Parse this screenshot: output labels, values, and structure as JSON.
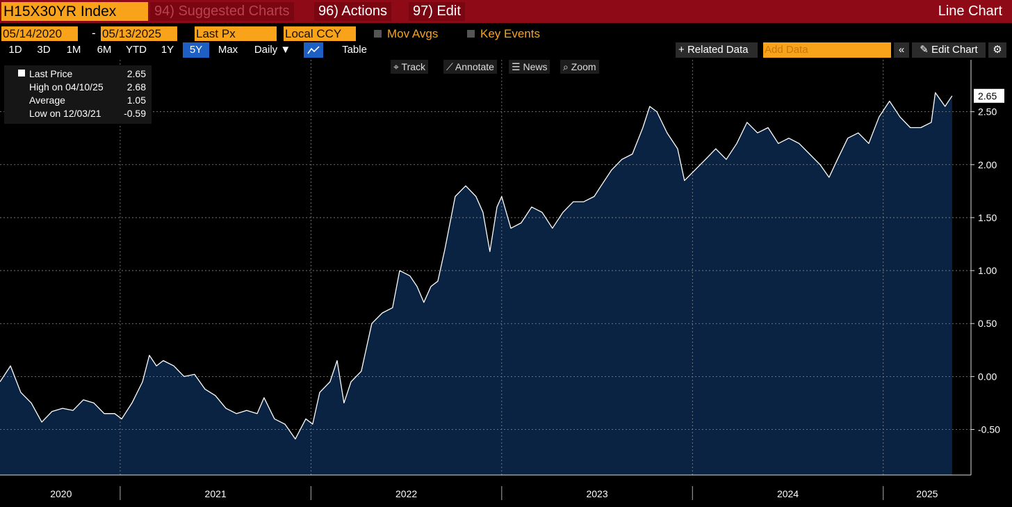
{
  "toolbar": {
    "ticker": "H15X30YR Index",
    "menu": [
      "94) Suggested Charts",
      "96) Actions",
      "97) Edit"
    ],
    "view": "Line Chart"
  },
  "settings": {
    "start": "05/14/2020",
    "end": "05/13/2025",
    "field": "Last Px",
    "currency": "Local CCY",
    "options": [
      "Mov Avgs",
      "Key Events"
    ]
  },
  "ranges": {
    "buttons": [
      "1D",
      "3D",
      "1M",
      "6M",
      "YTD",
      "1Y",
      "5Y",
      "Max"
    ],
    "frequency": "Daily",
    "table": "Table",
    "related": "Related Data",
    "add": "Add Data",
    "edit": "Edit Chart"
  },
  "tools": [
    "Track",
    "Annotate",
    "News",
    "Zoom"
  ],
  "chart_data": {
    "type": "area",
    "series": [
      {
        "name": "Last Price",
        "color": "#ffffff",
        "fill": "#0b2342",
        "x": [
          2020.37,
          2020.425,
          2020.479,
          2020.534,
          2020.589,
          2020.643,
          2020.698,
          2020.753,
          2020.807,
          2020.862,
          2020.916,
          2020.971,
          2021.008,
          2021.062,
          2021.117,
          2021.153,
          2021.19,
          2021.226,
          2021.281,
          2021.335,
          2021.39,
          2021.445,
          2021.499,
          2021.554,
          2021.609,
          2021.663,
          2021.718,
          2021.754,
          2021.809,
          2021.864,
          2021.918,
          2021.973,
          2022.009,
          2022.046,
          2022.1,
          2022.137,
          2022.173,
          2022.21,
          2022.264,
          2022.319,
          2022.374,
          2022.428,
          2022.465,
          2022.519,
          2022.556,
          2022.592,
          2022.629,
          2022.665,
          2022.702,
          2022.756,
          2022.811,
          2022.865,
          2022.902,
          2022.938,
          2022.975,
          2023.0,
          2023.048,
          2023.102,
          2023.157,
          2023.212,
          2023.266,
          2023.321,
          2023.375,
          2023.43,
          2023.485,
          2023.521,
          2023.576,
          2023.63,
          2023.685,
          2023.74,
          2023.776,
          2023.813,
          2023.867,
          2023.922,
          2023.958,
          2024.013,
          2024.068,
          2024.122,
          2024.177,
          2024.232,
          2024.286,
          2024.341,
          2024.396,
          2024.45,
          2024.505,
          2024.559,
          2024.614,
          2024.669,
          2024.716,
          2024.76,
          2024.814,
          2024.869,
          2024.924,
          2024.978,
          2025.033,
          2025.088,
          2025.142,
          2025.197,
          2025.252,
          2025.273,
          2025.324,
          2025.361
        ],
        "values": [
          -0.05,
          0.1,
          -0.15,
          -0.25,
          -0.43,
          -0.33,
          -0.3,
          -0.32,
          -0.22,
          -0.25,
          -0.35,
          -0.35,
          -0.4,
          -0.25,
          -0.05,
          0.2,
          0.1,
          0.15,
          0.1,
          0.0,
          0.02,
          -0.12,
          -0.18,
          -0.3,
          -0.35,
          -0.32,
          -0.35,
          -0.2,
          -0.4,
          -0.45,
          -0.59,
          -0.4,
          -0.45,
          -0.15,
          -0.05,
          0.15,
          -0.25,
          -0.05,
          0.05,
          0.5,
          0.6,
          0.65,
          1.0,
          0.95,
          0.85,
          0.7,
          0.85,
          0.9,
          1.2,
          1.7,
          1.8,
          1.7,
          1.55,
          1.18,
          1.6,
          1.7,
          1.4,
          1.45,
          1.6,
          1.55,
          1.4,
          1.55,
          1.65,
          1.65,
          1.7,
          1.8,
          1.95,
          2.05,
          2.1,
          2.35,
          2.55,
          2.5,
          2.3,
          2.15,
          1.85,
          1.95,
          2.05,
          2.15,
          2.05,
          2.2,
          2.4,
          2.3,
          2.35,
          2.2,
          2.25,
          2.2,
          2.1,
          2.0,
          1.88,
          2.05,
          2.25,
          2.3,
          2.2,
          2.45,
          2.6,
          2.45,
          2.35,
          2.35,
          2.4,
          2.68,
          2.55,
          2.65
        ]
      }
    ],
    "stats": [
      {
        "label": "High on 04/10/25",
        "value": 2.68
      },
      {
        "label": "Average",
        "value": 1.05
      },
      {
        "label": "Low on 12/03/21",
        "value": -0.59
      }
    ],
    "xlim": [
      2020.37,
      2025.46
    ],
    "xticks": [
      {
        "value": 2020.69,
        "label": "2020"
      },
      {
        "value": 2021.5,
        "label": "2021"
      },
      {
        "value": 2022.5,
        "label": "2022"
      },
      {
        "value": 2023.5,
        "label": "2023"
      },
      {
        "value": 2024.5,
        "label": "2024"
      },
      {
        "value": 2025.23,
        "label": "2025"
      }
    ],
    "xgrid": [
      2021,
      2022,
      2023,
      2024,
      2025
    ],
    "ylim": [
      -0.93,
      2.99
    ],
    "yticks": [
      {
        "value": -0.5,
        "label": "-0.50"
      },
      {
        "value": 0,
        "label": "0.00"
      },
      {
        "value": 0.5,
        "label": "0.50"
      },
      {
        "value": 1,
        "label": "1.00"
      },
      {
        "value": 1.5,
        "label": "1.50"
      },
      {
        "value": 2,
        "label": "2.00"
      },
      {
        "value": 2.5,
        "label": "2.50"
      }
    ],
    "grid": true,
    "axis_side": "right"
  }
}
